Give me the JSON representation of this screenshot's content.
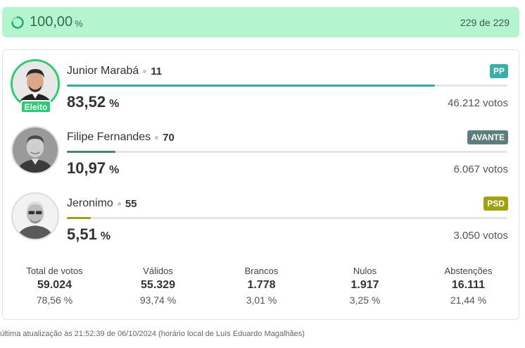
{
  "progress": {
    "value": "100,00",
    "unit": "%",
    "sections": "229 de 229"
  },
  "candidates": [
    {
      "name": "Junior Marabá",
      "number": "11",
      "party": "PP",
      "party_color": "#3aafa9",
      "bar_color": "#3aa3a0",
      "fraction": 0.8352,
      "percent": "83,52",
      "unit": "%",
      "votes": "46.212 votos",
      "badge": "Eleito",
      "avatar": "avatar-junior-icon"
    },
    {
      "name": "Filipe Fernandes",
      "number": "70",
      "party": "AVANTE",
      "party_color": "#5a7f7c",
      "bar_color": "#4f7f7c",
      "fraction": 0.1097,
      "percent": "10,97",
      "unit": "%",
      "votes": "6.067 votos",
      "avatar": "avatar-filipe-icon"
    },
    {
      "name": "Jeronimo",
      "number": "55",
      "party": "PSD",
      "party_color": "#a3a012",
      "bar_color": "#a3a012",
      "fraction": 0.0551,
      "percent": "5,51",
      "unit": "%",
      "votes": "3.050 votos",
      "avatar": "avatar-jeronimo-icon"
    }
  ],
  "totals": [
    {
      "label": "Total de votos",
      "value": "59.024",
      "share": "78,56 %"
    },
    {
      "label": "Válidos",
      "value": "55.329",
      "share": "93,74 %"
    },
    {
      "label": "Brancos",
      "value": "1.778",
      "share": "3,01 %"
    },
    {
      "label": "Nulos",
      "value": "1.917",
      "share": "3,25 %"
    },
    {
      "label": "Abstenções",
      "value": "16.111",
      "share": "21,44 %"
    }
  ],
  "footer": "última atualização às 21:52:39 de 06/10/2024 (horário local de Luís Eduardo Magalhães)",
  "colors": {
    "banner": "#b3f5cf",
    "elected": "#2ecc71"
  }
}
